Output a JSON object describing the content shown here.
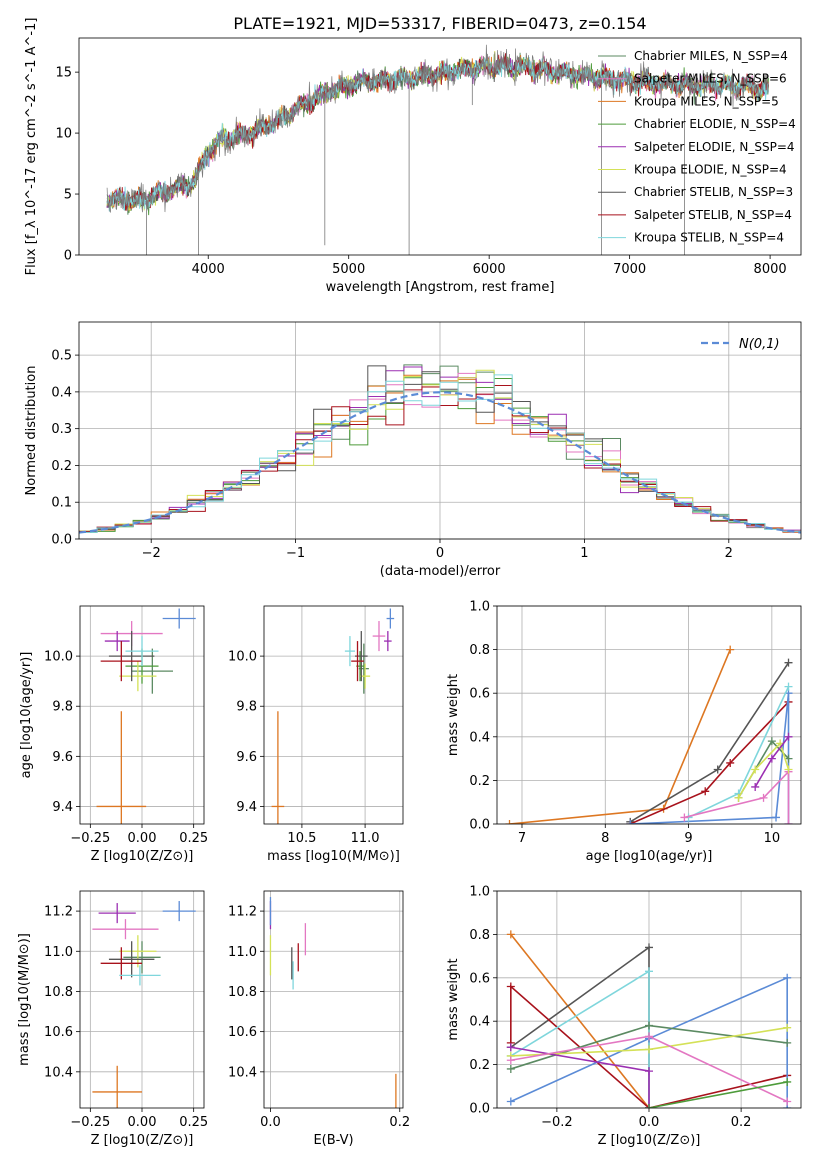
{
  "figure": {
    "title": "PLATE=1921, MJD=53317, FIBERID=0473, z=0.154"
  },
  "models": [
    {
      "key": "cm",
      "name": "Chabrier MILES, N_SSP=4",
      "color": "#5b8a62"
    },
    {
      "key": "sm",
      "name": "Salpeter MILES, N_SSP=6",
      "color": "#e377c2"
    },
    {
      "key": "km",
      "name": "Kroupa MILES, N_SSP=5",
      "color": "#dd7722"
    },
    {
      "key": "ce",
      "name": "Chabrier ELODIE, N_SSP=4",
      "color": "#4d9b3a"
    },
    {
      "key": "se",
      "name": "Salpeter ELODIE, N_SSP=4",
      "color": "#9b2fb2"
    },
    {
      "key": "ke",
      "name": "Kroupa ELODIE, N_SSP=4",
      "color": "#d4e157"
    },
    {
      "key": "cs",
      "name": "Chabrier STELIB, N_SSP=3",
      "color": "#555555"
    },
    {
      "key": "ss",
      "name": "Salpeter STELIB, N_SSP=4",
      "color": "#a8121c"
    },
    {
      "key": "ks",
      "name": "Kroupa STELIB, N_SSP=4",
      "color": "#7fd6dc"
    }
  ],
  "chart_data": [
    {
      "id": "spectrum",
      "type": "line",
      "xlabel": "wavelength [Angstrom, rest frame]",
      "ylabel": "Flux [f_λ 10^-17 erg cm^-2 s^-1 A^-1]",
      "xlim": [
        3080,
        8220
      ],
      "ylim": [
        0,
        17.8
      ],
      "xticks": [
        4000,
        5000,
        6000,
        7000,
        8000
      ],
      "yticks": [
        0,
        5,
        10,
        15
      ],
      "grid": false,
      "legend": "upper right",
      "continuum": [
        [
          3280,
          4.6
        ],
        [
          3500,
          4.4
        ],
        [
          3700,
          5.2
        ],
        [
          3900,
          6.0
        ],
        [
          4000,
          8.5
        ],
        [
          4100,
          9.5
        ],
        [
          4300,
          10.0
        ],
        [
          4500,
          11.0
        ],
        [
          4700,
          12.5
        ],
        [
          4900,
          13.6
        ],
        [
          5100,
          14.2
        ],
        [
          5300,
          14.4
        ],
        [
          5500,
          14.6
        ],
        [
          5700,
          15.0
        ],
        [
          5900,
          15.4
        ],
        [
          6100,
          15.5
        ],
        [
          6300,
          15.3
        ],
        [
          6500,
          15.0
        ],
        [
          6700,
          14.7
        ],
        [
          6900,
          14.4
        ],
        [
          7100,
          14.2
        ],
        [
          7300,
          14.0
        ],
        [
          7500,
          13.9
        ],
        [
          7700,
          13.9
        ],
        [
          7900,
          13.7
        ],
        [
          7990,
          13.6
        ]
      ],
      "spikes": [
        [
          3560,
          0
        ],
        [
          3930,
          0
        ],
        [
          4830,
          0.8
        ],
        [
          5430,
          0
        ],
        [
          5880,
          12.3
        ],
        [
          6800,
          0
        ],
        [
          7390,
          0
        ]
      ]
    },
    {
      "id": "residuals",
      "type": "line",
      "xlabel": "(data-model)/error",
      "ylabel": "Normed distribution",
      "xlim": [
        -2.5,
        2.5
      ],
      "ylim": [
        0,
        0.59
      ],
      "xticks": [
        -2,
        -1,
        0,
        1,
        2
      ],
      "yticks": [
        0.0,
        0.1,
        0.2,
        0.3,
        0.4,
        0.5
      ],
      "grid": true,
      "legend": "upper right",
      "legend_label": "N(0,1)",
      "reference": {
        "name": "N(0,1)",
        "mean": 0,
        "sigma": 1,
        "color": "#5b8bd6"
      },
      "bins": 40
    },
    {
      "id": "age_vs_Z",
      "type": "scatter",
      "xlabel": "Z [log10(Z/Z⊙)]",
      "ylabel": "age [log10(age/yr)]",
      "xlim": [
        -0.3,
        0.3
      ],
      "ylim": [
        9.33,
        10.2
      ],
      "xticks": [
        -0.25,
        0.0,
        0.25
      ],
      "yticks": [
        9.4,
        9.6,
        9.8,
        10.0
      ],
      "grid": true,
      "points": [
        {
          "model": "km",
          "x": -0.1,
          "xerr": 0.12,
          "y": 9.4,
          "yerr": 0.38
        },
        {
          "model": "sm",
          "x": -0.05,
          "xerr": 0.15,
          "y": 10.09,
          "yerr": 0.05
        },
        {
          "model": "cm",
          "x": 0.05,
          "xerr": 0.1,
          "y": 9.94,
          "yerr": 0.09
        },
        {
          "model": "ce",
          "x": 0.0,
          "xerr": 0.08,
          "y": 9.96,
          "yerr": 0.07
        },
        {
          "model": "se",
          "x": -0.12,
          "xerr": 0.06,
          "y": 10.06,
          "yerr": 0.04
        },
        {
          "model": "ke",
          "x": -0.02,
          "xerr": 0.09,
          "y": 9.92,
          "yerr": 0.06
        },
        {
          "model": "cs",
          "x": -0.05,
          "xerr": 0.11,
          "y": 10.0,
          "yerr": 0.1
        },
        {
          "model": "ss",
          "x": -0.1,
          "xerr": 0.1,
          "y": 9.98,
          "yerr": 0.08
        },
        {
          "model": "ks",
          "x": 0.0,
          "xerr": 0.08,
          "y": 10.02,
          "yerr": 0.06
        },
        {
          "model": "blue",
          "x": 0.18,
          "xerr": 0.08,
          "y": 10.15,
          "yerr": 0.04
        }
      ]
    },
    {
      "id": "age_vs_mass",
      "type": "scatter",
      "xlabel": "mass [log10(M/M⊙)]",
      "ylabel": "",
      "xlim": [
        10.2,
        11.3
      ],
      "ylim": [
        9.33,
        10.2
      ],
      "xticks": [
        10.5,
        11.0
      ],
      "yticks": [
        9.4,
        9.6,
        9.8,
        10.0
      ],
      "grid": true,
      "points": [
        {
          "model": "km",
          "x": 10.31,
          "xerr": 0.05,
          "y": 9.4,
          "yerr": 0.38
        },
        {
          "model": "sm",
          "x": 11.11,
          "xerr": 0.05,
          "y": 10.08,
          "yerr": 0.06
        },
        {
          "model": "cm",
          "x": 10.99,
          "xerr": 0.04,
          "y": 9.95,
          "yerr": 0.1
        },
        {
          "model": "ce",
          "x": 10.96,
          "xerr": 0.03,
          "y": 9.96,
          "yerr": 0.06
        },
        {
          "model": "se",
          "x": 11.18,
          "xerr": 0.03,
          "y": 10.06,
          "yerr": 0.04
        },
        {
          "model": "ke",
          "x": 11.0,
          "xerr": 0.04,
          "y": 9.92,
          "yerr": 0.05
        },
        {
          "model": "cs",
          "x": 10.97,
          "xerr": 0.05,
          "y": 10.0,
          "yerr": 0.1
        },
        {
          "model": "ss",
          "x": 10.94,
          "xerr": 0.05,
          "y": 9.98,
          "yerr": 0.08
        },
        {
          "model": "ks",
          "x": 10.88,
          "xerr": 0.04,
          "y": 10.02,
          "yerr": 0.06
        },
        {
          "model": "blue",
          "x": 11.2,
          "xerr": 0.03,
          "y": 10.15,
          "yerr": 0.04
        }
      ]
    },
    {
      "id": "weight_vs_age",
      "type": "line",
      "xlabel": "age [log10(age/yr)]",
      "ylabel": "mass weight",
      "xlim": [
        6.7,
        10.35
      ],
      "ylim": [
        0,
        1
      ],
      "xticks": [
        7,
        8,
        9,
        10
      ],
      "yticks": [
        0.0,
        0.2,
        0.4,
        0.6,
        0.8,
        1.0
      ],
      "grid": true,
      "series": [
        {
          "model": "km",
          "x": [
            6.85,
            8.7,
            9.5
          ],
          "y": [
            0.0,
            0.07,
            0.8
          ]
        },
        {
          "model": "cs",
          "x": [
            8.3,
            9.35,
            10.2
          ],
          "y": [
            0.01,
            0.25,
            0.74
          ]
        },
        {
          "model": "ss",
          "x": [
            8.3,
            9.2,
            9.5,
            10.2
          ],
          "y": [
            0.0,
            0.15,
            0.28,
            0.56
          ]
        },
        {
          "model": "blue",
          "x": [
            8.3,
            10.05,
            10.2,
            10.2
          ],
          "y": [
            0.0,
            0.03,
            0.6,
            0.0
          ]
        },
        {
          "model": "ks",
          "x": [
            9.0,
            9.6,
            10.2
          ],
          "y": [
            0.03,
            0.14,
            0.63
          ]
        },
        {
          "model": "sm",
          "x": [
            8.95,
            9.9,
            10.2,
            10.2
          ],
          "y": [
            0.03,
            0.12,
            0.24,
            0.0
          ]
        },
        {
          "model": "cm",
          "x": [
            9.6,
            10.0,
            10.2
          ],
          "y": [
            0.12,
            0.38,
            0.3
          ]
        },
        {
          "model": "ke",
          "x": [
            9.6,
            9.8,
            10.1,
            10.2
          ],
          "y": [
            0.12,
            0.25,
            0.37,
            0.25
          ]
        },
        {
          "model": "se",
          "x": [
            9.8,
            10.0,
            10.2
          ],
          "y": [
            0.17,
            0.3,
            0.4
          ]
        }
      ]
    },
    {
      "id": "mass_vs_Z",
      "type": "scatter",
      "xlabel": "Z [log10(Z/Z⊙)]",
      "ylabel": "mass [log10(M/M⊙)]",
      "xlim": [
        -0.3,
        0.3
      ],
      "ylim": [
        10.22,
        11.3
      ],
      "xticks": [
        -0.25,
        0.0,
        0.25
      ],
      "yticks": [
        10.4,
        10.6,
        10.8,
        11.0,
        11.2
      ],
      "grid": true,
      "points": [
        {
          "model": "km",
          "x": -0.12,
          "xerr": 0.12,
          "y": 10.3,
          "yerr": 0.13
        },
        {
          "model": "sm",
          "x": -0.08,
          "xerr": 0.16,
          "y": 11.11,
          "yerr": 0.05
        },
        {
          "model": "se",
          "x": -0.12,
          "xerr": 0.09,
          "y": 11.19,
          "yerr": 0.05
        },
        {
          "model": "cm",
          "x": 0.0,
          "xerr": 0.09,
          "y": 10.97,
          "yerr": 0.08
        },
        {
          "model": "ke",
          "x": -0.02,
          "xerr": 0.09,
          "y": 11.0,
          "yerr": 0.08
        },
        {
          "model": "cs",
          "x": -0.05,
          "xerr": 0.11,
          "y": 10.96,
          "yerr": 0.09
        },
        {
          "model": "ss",
          "x": -0.1,
          "xerr": 0.1,
          "y": 10.94,
          "yerr": 0.08
        },
        {
          "model": "ks",
          "x": -0.01,
          "xerr": 0.1,
          "y": 10.88,
          "yerr": 0.05
        },
        {
          "model": "blue",
          "x": 0.18,
          "xerr": 0.08,
          "y": 11.2,
          "yerr": 0.05
        }
      ]
    },
    {
      "id": "mass_vs_ebv",
      "type": "scatter",
      "xlabel": "E(B-V)",
      "ylabel": "",
      "xlim": [
        -0.01,
        0.205
      ],
      "ylim": [
        10.22,
        11.3
      ],
      "xticks": [
        0.0,
        0.2
      ],
      "yticks": [
        10.4,
        10.6,
        10.8,
        11.0,
        11.2
      ],
      "grid": true,
      "points": [
        {
          "model": "km",
          "x": 0.194,
          "xerr": 0,
          "y": 10.3,
          "yerr": 0.09
        },
        {
          "model": "sm",
          "x": 0.054,
          "xerr": 0,
          "y": 11.06,
          "yerr": 0.08
        },
        {
          "model": "se",
          "x": 0.0,
          "xerr": 0,
          "y": 11.18,
          "yerr": 0.07
        },
        {
          "model": "ke",
          "x": 0.0,
          "xerr": 0,
          "y": 10.98,
          "yerr": 0.1
        },
        {
          "model": "cs",
          "x": 0.033,
          "xerr": 0,
          "y": 10.94,
          "yerr": 0.08
        },
        {
          "model": "ss",
          "x": 0.043,
          "xerr": 0,
          "y": 10.97,
          "yerr": 0.07
        },
        {
          "model": "ks",
          "x": 0.035,
          "xerr": 0,
          "y": 10.88,
          "yerr": 0.07
        },
        {
          "model": "blue",
          "x": 0.0,
          "xerr": 0,
          "y": 11.2,
          "yerr": 0.07
        }
      ]
    },
    {
      "id": "weight_vs_Z",
      "type": "line",
      "xlabel": "Z [log10(Z/Z⊙)]",
      "ylabel": "mass weight",
      "xlim": [
        -0.33,
        0.33
      ],
      "ylim": [
        0,
        1
      ],
      "xticks": [
        -0.2,
        0.0,
        0.2
      ],
      "yticks": [
        0.0,
        0.2,
        0.4,
        0.6,
        0.8,
        1.0
      ],
      "grid": true,
      "series": [
        {
          "model": "km",
          "x": [
            -0.3,
            0.0
          ],
          "y": [
            0.8,
            0.0
          ]
        },
        {
          "model": "cs",
          "x": [
            -0.3,
            0.0,
            0.0
          ],
          "y": [
            0.28,
            0.74,
            0.0
          ]
        },
        {
          "model": "ss",
          "x": [
            -0.3,
            -0.3,
            0.0,
            0.3
          ],
          "y": [
            0.3,
            0.56,
            0.0,
            0.15
          ]
        },
        {
          "model": "ks",
          "x": [
            -0.3,
            0.0,
            0.0
          ],
          "y": [
            0.24,
            0.63,
            0.0
          ]
        },
        {
          "model": "blue",
          "x": [
            -0.3,
            0.0,
            0.3,
            0.3
          ],
          "y": [
            0.03,
            0.32,
            0.6,
            0.0
          ]
        },
        {
          "model": "cm",
          "x": [
            -0.3,
            0.0,
            0.3
          ],
          "y": [
            0.18,
            0.38,
            0.3
          ]
        },
        {
          "model": "ke",
          "x": [
            -0.3,
            0.0,
            0.3
          ],
          "y": [
            0.24,
            0.27,
            0.37
          ]
        },
        {
          "model": "se",
          "x": [
            -0.3,
            0.0,
            0.0
          ],
          "y": [
            0.28,
            0.17,
            0.0
          ]
        },
        {
          "model": "sm",
          "x": [
            -0.3,
            0.0,
            0.3
          ],
          "y": [
            0.22,
            0.33,
            0.03
          ]
        },
        {
          "model": "ce",
          "x": [
            0.0,
            0.3
          ],
          "y": [
            0.0,
            0.12
          ]
        }
      ]
    }
  ]
}
